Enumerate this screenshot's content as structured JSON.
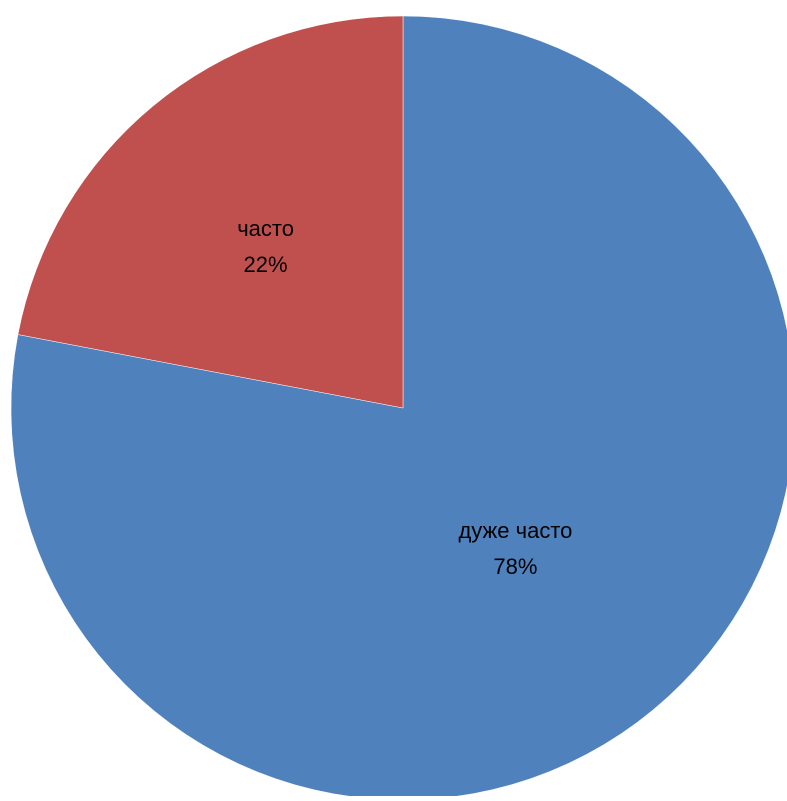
{
  "chart_data": {
    "type": "pie",
    "title": "",
    "slices": [
      {
        "label": "дуже часто",
        "value": 78,
        "percent_label": "78%",
        "color": "#4F81BD"
      },
      {
        "label": "часто",
        "value": 22,
        "percent_label": "22%",
        "color": "#C0504D"
      }
    ],
    "legend": "none",
    "data_labels": "inside",
    "start_angle": "12 o'clock",
    "direction": "clockwise"
  }
}
